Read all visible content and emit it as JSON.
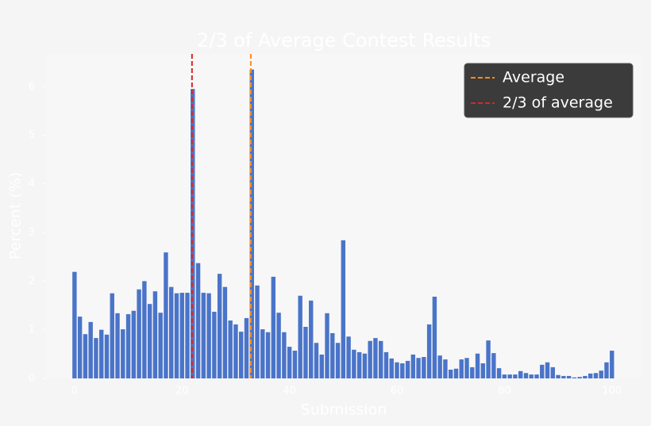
{
  "chart_data": {
    "type": "bar",
    "title": "2/3 of Average Contest Results",
    "xlabel": "Submission",
    "ylabel": "Percent (%)",
    "x": [
      0,
      1,
      2,
      3,
      4,
      5,
      6,
      7,
      8,
      9,
      10,
      11,
      12,
      13,
      14,
      15,
      16,
      17,
      18,
      19,
      20,
      21,
      22,
      23,
      24,
      25,
      26,
      27,
      28,
      29,
      30,
      31,
      32,
      33,
      34,
      35,
      36,
      37,
      38,
      39,
      40,
      41,
      42,
      43,
      44,
      45,
      46,
      47,
      48,
      49,
      50,
      51,
      52,
      53,
      54,
      55,
      56,
      57,
      58,
      59,
      60,
      61,
      62,
      63,
      64,
      65,
      66,
      67,
      68,
      69,
      70,
      71,
      72,
      73,
      74,
      75,
      76,
      77,
      78,
      79,
      80,
      81,
      82,
      83,
      84,
      85,
      86,
      87,
      88,
      89,
      90,
      91,
      92,
      93,
      94,
      95,
      96,
      97,
      98,
      99,
      100
    ],
    "values": [
      2.19,
      1.27,
      0.91,
      1.16,
      0.83,
      1.0,
      0.9,
      1.75,
      1.34,
      1.01,
      1.32,
      1.39,
      1.83,
      2.0,
      1.53,
      1.79,
      1.35,
      2.59,
      1.88,
      1.75,
      1.76,
      1.76,
      5.95,
      2.37,
      1.76,
      1.75,
      1.37,
      2.15,
      1.88,
      1.19,
      1.11,
      0.96,
      1.24,
      6.35,
      1.91,
      1.01,
      0.95,
      2.09,
      1.35,
      0.95,
      0.65,
      0.57,
      1.7,
      1.06,
      1.6,
      0.73,
      0.49,
      1.34,
      0.93,
      0.73,
      2.84,
      0.86,
      0.59,
      0.54,
      0.51,
      0.77,
      0.83,
      0.77,
      0.54,
      0.41,
      0.33,
      0.31,
      0.36,
      0.49,
      0.42,
      0.44,
      1.11,
      1.68,
      0.47,
      0.39,
      0.18,
      0.2,
      0.39,
      0.42,
      0.23,
      0.51,
      0.31,
      0.78,
      0.52,
      0.21,
      0.08,
      0.08,
      0.08,
      0.15,
      0.11,
      0.08,
      0.08,
      0.28,
      0.33,
      0.23,
      0.07,
      0.05,
      0.05,
      0.02,
      0.03,
      0.05,
      0.1,
      0.11,
      0.16,
      0.33,
      0.57
    ],
    "color": "#4a74c9",
    "reference_lines": [
      {
        "name": "Average",
        "value": 32.8,
        "color": "#ff8c1a"
      },
      {
        "name": "2/3 of average",
        "value": 21.86,
        "color": "#d62728"
      }
    ],
    "xlim": [
      -5.3,
      105.5
    ],
    "ylim": [
      0,
      6.67
    ],
    "xticks": [
      0,
      20,
      40,
      60,
      80,
      100
    ],
    "yticks": [
      0,
      1,
      2,
      3,
      4,
      5,
      6
    ],
    "legend": "upper right"
  }
}
